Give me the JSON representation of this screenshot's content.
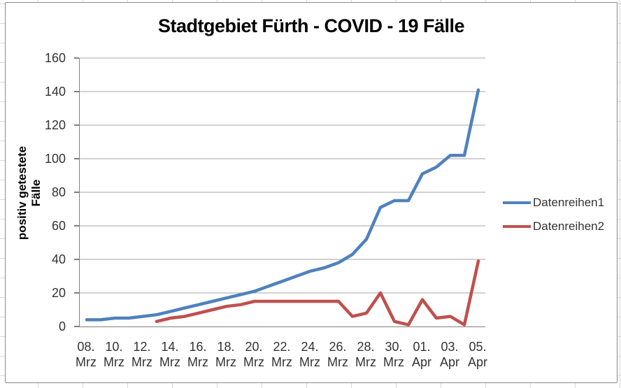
{
  "chart_data": {
    "type": "line",
    "title": "Stadtgebiet Fürth - COVID - 19 Fälle",
    "ylabel": "positiv getestete Fälle",
    "xlabel": "",
    "ylim": [
      0,
      160
    ],
    "ytick_step": 20,
    "ytick_labels": [
      "0",
      "20",
      "40",
      "60",
      "80",
      "100",
      "120",
      "140",
      "160"
    ],
    "grid": "horizontal",
    "legend_position": "right",
    "categories": [
      "08. Mrz",
      "09. Mrz",
      "10. Mrz",
      "11. Mrz",
      "12. Mrz",
      "13. Mrz",
      "14. Mrz",
      "15. Mrz",
      "16. Mrz",
      "17. Mrz",
      "18. Mrz",
      "19. Mrz",
      "20. Mrz",
      "21. Mrz",
      "22. Mrz",
      "23. Mrz",
      "24. Mrz",
      "25. Mrz",
      "26. Mrz",
      "27. Mrz",
      "28. Mrz",
      "29. Mrz",
      "30. Mrz",
      "31. Mrz",
      "01. Apr",
      "02. Apr",
      "03. Apr",
      "04. Apr",
      "05. Apr"
    ],
    "x_tick_labels": [
      [
        "08.",
        "Mrz"
      ],
      [
        "10.",
        "Mrz"
      ],
      [
        "12.",
        "Mrz"
      ],
      [
        "14.",
        "Mrz"
      ],
      [
        "16.",
        "Mrz"
      ],
      [
        "18.",
        "Mrz"
      ],
      [
        "20.",
        "Mrz"
      ],
      [
        "22.",
        "Mrz"
      ],
      [
        "24.",
        "Mrz"
      ],
      [
        "26.",
        "Mrz"
      ],
      [
        "28.",
        "Mrz"
      ],
      [
        "30.",
        "Mrz"
      ],
      [
        "01.",
        "Apr"
      ],
      [
        "03.",
        "Apr"
      ],
      [
        "05.",
        "Apr"
      ]
    ],
    "x_tick_every": 2,
    "series": [
      {
        "name": "Datenreihen1",
        "color": "#4F81BD",
        "values": [
          4,
          4,
          5,
          5,
          6,
          7,
          9,
          11,
          13,
          15,
          17,
          19,
          21,
          24,
          27,
          30,
          33,
          35,
          38,
          43,
          52,
          71,
          75,
          75,
          91,
          95,
          102,
          102,
          141
        ]
      },
      {
        "name": "Datenreihen2",
        "color": "#C0504D",
        "values": [
          null,
          null,
          null,
          null,
          null,
          3,
          5,
          6,
          8,
          10,
          12,
          13,
          15,
          15,
          15,
          15,
          15,
          15,
          15,
          6,
          8,
          20,
          3,
          1,
          16,
          5,
          6,
          1,
          39
        ]
      }
    ]
  }
}
